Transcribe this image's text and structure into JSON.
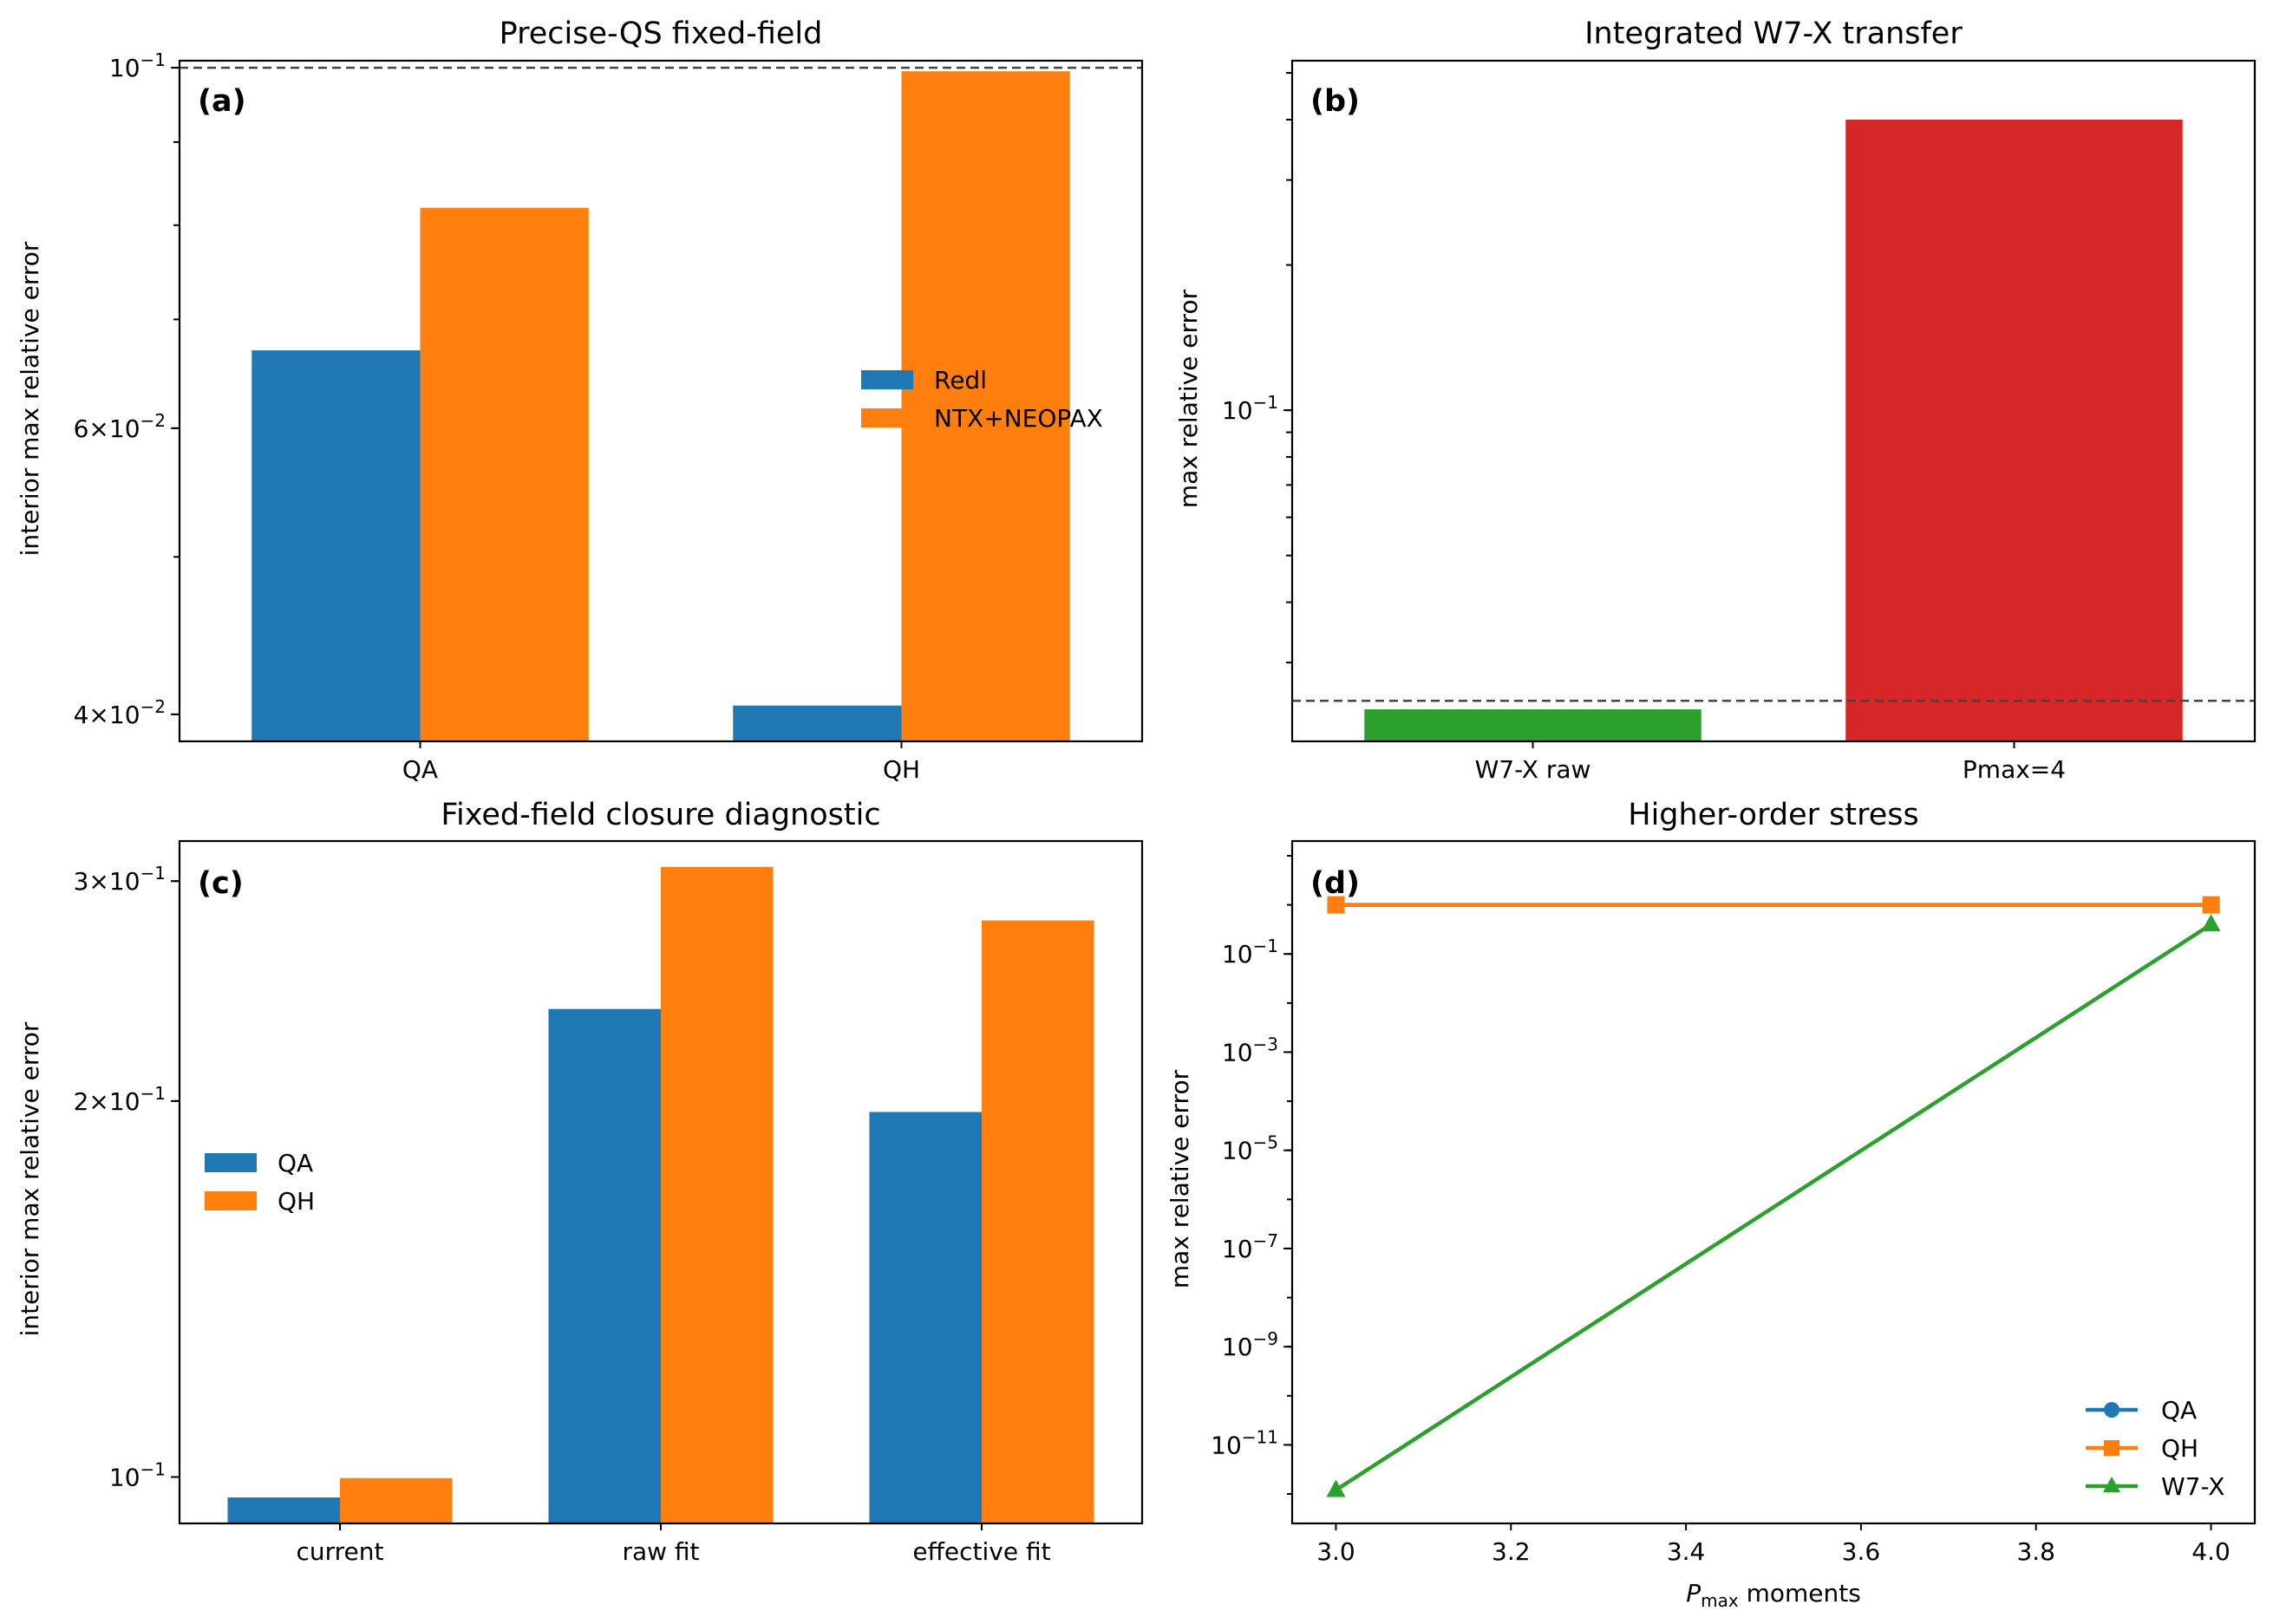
{
  "chart_data": [
    {
      "panel": "(a)",
      "type": "bar",
      "title": "Precise-QS fixed-field",
      "xlabel": "",
      "ylabel": "interior max relative error",
      "yscale": "log",
      "ylim": [
        0.0385,
        0.101
      ],
      "categories": [
        "QA",
        "QH"
      ],
      "series": [
        {
          "name": "Redl",
          "color": "#1f77b4",
          "values": [
            0.067,
            0.0405
          ]
        },
        {
          "name": "NTX+NEOPAX",
          "color": "#ff7f0e",
          "values": [
            0.082,
            0.0995
          ]
        }
      ],
      "reference_line": 0.1,
      "yticks": [
        {
          "value": 0.1,
          "mantissa": "",
          "exponent": "−1"
        },
        {
          "value": 0.06,
          "mantissa": "6",
          "exponent": "−2"
        },
        {
          "value": 0.04,
          "mantissa": "4",
          "exponent": "−2"
        }
      ],
      "legend_position": "center-right",
      "grid": false
    },
    {
      "panel": "(b)",
      "type": "bar",
      "title": "Integrated W7-X transfer",
      "xlabel": "",
      "ylabel": "max relative error",
      "yscale": "log",
      "ylim": [
        0.0206,
        0.53
      ],
      "categories": [
        "W7-X raw",
        "Pmax=4"
      ],
      "values": [
        0.024,
        0.4
      ],
      "colors": [
        "#2ca02c",
        "#d62728"
      ],
      "reference_line": 0.025,
      "yticks": [
        {
          "value": 0.1,
          "mantissa": "",
          "exponent": "−1"
        }
      ],
      "grid": false
    },
    {
      "panel": "(c)",
      "type": "bar",
      "title": "Fixed-field closure diagnostic",
      "xlabel": "",
      "ylabel": "interior max relative error",
      "yscale": "log",
      "ylim": [
        0.0918,
        0.323
      ],
      "categories": [
        "current",
        "raw fit",
        "effective fit"
      ],
      "series": [
        {
          "name": "QA",
          "color": "#1f77b4",
          "values": [
            0.0963,
            0.237,
            0.196
          ]
        },
        {
          "name": "QH",
          "color": "#ff7f0e",
          "values": [
            0.0998,
            0.308,
            0.279
          ]
        }
      ],
      "yticks": [
        {
          "value": 0.3,
          "mantissa": "3",
          "exponent": "−1"
        },
        {
          "value": 0.2,
          "mantissa": "2",
          "exponent": "−1"
        },
        {
          "value": 0.1,
          "mantissa": "",
          "exponent": "−1"
        }
      ],
      "legend_position": "center-left",
      "grid": false
    },
    {
      "panel": "(d)",
      "type": "line",
      "title": "Higher-order stress",
      "xlabel_base": "P",
      "xlabel_sub": "max",
      "xlabel_rest": " moments",
      "ylabel": "max relative error",
      "yscale": "log",
      "xlim": [
        2.95,
        4.05
      ],
      "ylim_log10": [
        -12.6,
        1.3
      ],
      "xticks": [
        "3.0",
        "3.2",
        "3.4",
        "3.6",
        "3.8",
        "4.0"
      ],
      "yticks": [
        {
          "value_log10": -1,
          "mantissa": "",
          "exponent": "−1"
        },
        {
          "value_log10": -3,
          "mantissa": "",
          "exponent": "−3"
        },
        {
          "value_log10": -5,
          "mantissa": "",
          "exponent": "−5"
        },
        {
          "value_log10": -7,
          "mantissa": "",
          "exponent": "−7"
        },
        {
          "value_log10": -9,
          "mantissa": "",
          "exponent": "−9"
        },
        {
          "value_log10": -11,
          "mantissa": "",
          "exponent": "−11"
        }
      ],
      "series": [
        {
          "name": "QA",
          "color": "#1f77b4",
          "marker": "circle",
          "x": [
            3.0,
            4.0
          ],
          "y": [
            1.0,
            1.0
          ]
        },
        {
          "name": "QH",
          "color": "#ff7f0e",
          "marker": "square",
          "x": [
            3.0,
            4.0
          ],
          "y": [
            1.0,
            1.0
          ]
        },
        {
          "name": "W7-X",
          "color": "#2ca02c",
          "marker": "triangle",
          "x": [
            3.0,
            4.0
          ],
          "y": [
            1.2e-12,
            0.4
          ]
        }
      ],
      "legend_position": "lower-right",
      "grid": false
    }
  ]
}
